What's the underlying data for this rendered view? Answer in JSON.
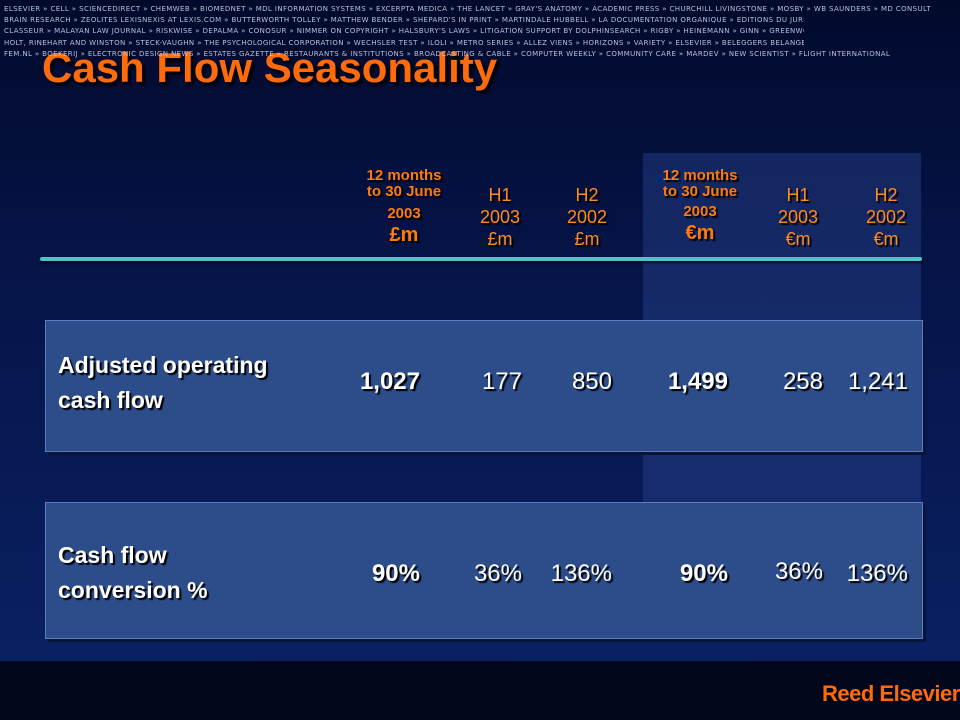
{
  "title": "Cash Flow Seasonality",
  "colors": {
    "title": "#ff6a0a",
    "header": "#ff7a10",
    "divider": "#4fc3c8",
    "row_box": "#2d4c8a",
    "logo": "#ff6a0a"
  },
  "columns": [
    {
      "line1": "12 months",
      "line2": "to 30 June",
      "line3": "2003",
      "currency": "£m"
    },
    {
      "line1": "H1",
      "line2": "2003",
      "currency": "£m"
    },
    {
      "line1": "H2",
      "line2": "2002",
      "currency": "£m"
    },
    {
      "line1": "12 months",
      "line2": "to 30 June",
      "line3": "2003",
      "currency": "€m"
    },
    {
      "line1": "H1",
      "line2": "2003",
      "currency": "€m"
    },
    {
      "line1": "H2",
      "line2": "2002",
      "currency": "€m"
    }
  ],
  "rows": [
    {
      "label_line1": "Adjusted operating",
      "label_line2": "cash flow",
      "values": [
        "1,027",
        "177",
        "850",
        "1,499",
        "258",
        "1,241"
      ]
    },
    {
      "label_line1": "Cash flow",
      "label_line2": "conversion %",
      "values": [
        "90%",
        "36%",
        "136%",
        "90%",
        "36%",
        "136%"
      ]
    }
  ],
  "footer_lines": [
    "ELSEVIER » CELL » SCIENCEDIRECT » CHEMWEB » BIOMEDNET » MDL INFORMATION SYSTEMS » EXCERPTA MEDICA » THE LANCET » GRAY'S ANATOMY » ACADEMIC PRESS » CHURCHILL LIVINGSTONE » MOSBY » WB SAUNDERS » MD CONSULT",
    "BRAIN RESEARCH » ZEOLITES LEXISNEXIS  AT LEXIS.COM » BUTTERWORTH TOLLEY » MATTHEW BENDER  » SHEPARD'S  IN PRINT » MARTINDALE HUBBELL  » LA DOCUMENTATION ORGANIQUE » EDITIONS DU JURIS",
    "CLASSEUR » MALAYAN LAW JOURNAL » RISKWISE  » DEPALMA » CONOSUR » NIMMER ON COPYRIGHT » HALSBURY'S LAWS » LITIGATION SUPPORT BY DOLPHINSEARCH » RIGBY » HEINEMANN » GINN » GREENWOOD",
    "HOLT, RINEHART AND WINSTON » STECK-VAUGHN » THE PSYCHOLOGICAL CORPORATION » WECHSLER TEST » ILOLI » METRO SERIES » ALLEZ VIENS » HORIZONS » VARIETY » ELSEVIER » BELEGGERS BELANGEN",
    "FEM.NL » BOEKERIJ » ELECTRONIC DESIGN NEWS » ESTATES GAZETTE » RESTAURANTS & INSTITUTIONS » BROADCASTING & CABLE » COMPUTER WEEKLY » COMMUNITY CARE » MARDEV » NEW SCIENTIST » FLIGHT INTERNATIONAL"
  ],
  "logo": "Reed Elsevier"
}
